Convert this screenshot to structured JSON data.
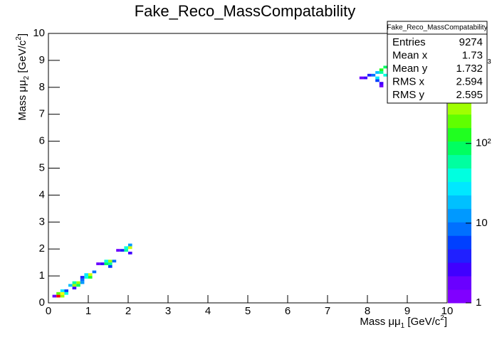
{
  "chart_data": {
    "type": "heatmap",
    "title": "Fake_Reco_MassCompatability",
    "xlabel": [
      "Mass μμ",
      "1",
      " [GeV/c",
      "2",
      "]"
    ],
    "ylabel": [
      "Mass μμ",
      "2",
      " [GeV/c",
      "2",
      "]"
    ],
    "xlim": [
      0,
      10
    ],
    "ylim": [
      0,
      10
    ],
    "xticks": [
      0,
      1,
      2,
      3,
      4,
      5,
      6,
      7,
      8,
      9,
      10
    ],
    "yticks": [
      0,
      1,
      2,
      3,
      4,
      5,
      6,
      7,
      8,
      9,
      10
    ],
    "bin_width": 0.1,
    "zlim": [
      1,
      2400
    ],
    "zlog": true,
    "zticks": [
      1,
      10,
      {
        "value": 100,
        "label": "10²"
      },
      {
        "value": 1000,
        "label": "10³"
      }
    ],
    "palette": [
      "#8000ff",
      "#6a00ff",
      "#4000ff",
      "#2020ff",
      "#0040ff",
      "#0070ff",
      "#0099ff",
      "#00c0ff",
      "#00e8ff",
      "#00ffe0",
      "#00ffa0",
      "#00ff60",
      "#20ff20",
      "#60ff00",
      "#a0ff00",
      "#d0ff00",
      "#ffff00",
      "#ffc000",
      "#ff8000",
      "#ff0000"
    ],
    "cells": {
      "x": [
        0.2,
        0.3,
        0.2,
        0.3,
        0.4,
        0.3,
        0.4,
        0.1,
        0.6,
        0.7,
        0.6,
        0.7,
        0.5,
        0.8,
        0.6,
        0.8,
        0.9,
        1.0,
        1.0,
        0.9,
        1.1,
        0.8,
        1.4,
        1.5,
        1.4,
        1.5,
        1.3,
        1.6,
        1.5,
        1.2,
        1.9,
        2.0,
        1.9,
        2.0,
        1.8,
        1.7,
        2.0,
        7.8,
        7.9,
        8.0,
        8.1,
        8.2,
        8.3,
        8.3,
        8.4,
        8.2,
        8.3,
        8.3,
        8.2,
        8.4
      ],
      "y": [
        0.2,
        0.2,
        0.3,
        0.3,
        0.3,
        0.4,
        0.4,
        0.2,
        0.6,
        0.7,
        0.7,
        0.6,
        0.6,
        0.8,
        0.5,
        0.7,
        0.9,
        1.0,
        0.9,
        1.0,
        1.1,
        0.9,
        1.4,
        1.5,
        1.5,
        1.4,
        1.4,
        1.5,
        1.3,
        1.4,
        1.9,
        2.0,
        2.0,
        2.1,
        1.9,
        1.9,
        1.8,
        8.3,
        8.3,
        8.4,
        8.4,
        8.5,
        8.5,
        8.6,
        8.4,
        8.2,
        8.1,
        8.0,
        8.3,
        8.7
      ],
      "values": [
        1800,
        300,
        200,
        600,
        40,
        30,
        5,
        2,
        300,
        250,
        60,
        80,
        20,
        10,
        3,
        15,
        40,
        400,
        120,
        30,
        10,
        4,
        80,
        300,
        40,
        60,
        3,
        8,
        5,
        2,
        60,
        350,
        40,
        15,
        4,
        2,
        3,
        2,
        3,
        4,
        10,
        20,
        60,
        150,
        40,
        5,
        3,
        2,
        30,
        100
      ]
    },
    "stats": {
      "title": "Fake_Reco_MassCompatability",
      "labels": [
        "Entries",
        "Mean x",
        "Mean y",
        "RMS x",
        "RMS y"
      ],
      "values": [
        9274,
        1.73,
        1.732,
        2.594,
        2.595
      ]
    }
  }
}
